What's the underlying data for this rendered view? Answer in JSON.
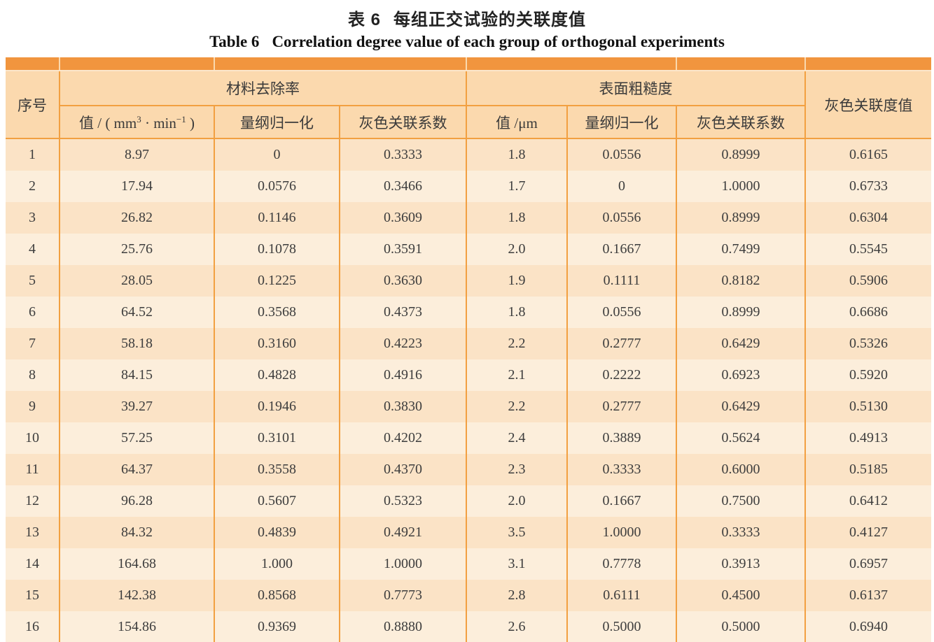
{
  "title": {
    "zh_label": "表 6",
    "zh_text": "每组正交试验的关联度值",
    "en_label": "Table 6",
    "en_text": "Correlation degree value of each group of orthogonal experiments"
  },
  "colors": {
    "band_orange": "#f1953e",
    "grid_orange": "#f2a041",
    "header_bg": "#fbd9ae",
    "row_odd_bg": "#fbe3c6",
    "row_even_bg": "#fceedb",
    "text": "#3a3a3a"
  },
  "table": {
    "index_header": "序号",
    "group1_header": "材料去除率",
    "group2_header": "表面粗糙度",
    "overall_header": "灰色关联度值",
    "sub_headers": {
      "mrr_value": {
        "pre": "值 / ( mm",
        "sup1": "3",
        "mid": " · min",
        "sup2": "−1",
        "post": " )"
      },
      "mrr_norm": "量纲归一化",
      "mrr_grey": "灰色关联系数",
      "ra_value": "值 /μm",
      "ra_norm": "量纲归一化",
      "ra_grey": "灰色关联系数"
    },
    "rows": [
      [
        "1",
        "8.97",
        "0",
        "0.3333",
        "1.8",
        "0.0556",
        "0.8999",
        "0.6165"
      ],
      [
        "2",
        "17.94",
        "0.0576",
        "0.3466",
        "1.7",
        "0",
        "1.0000",
        "0.6733"
      ],
      [
        "3",
        "26.82",
        "0.1146",
        "0.3609",
        "1.8",
        "0.0556",
        "0.8999",
        "0.6304"
      ],
      [
        "4",
        "25.76",
        "0.1078",
        "0.3591",
        "2.0",
        "0.1667",
        "0.7499",
        "0.5545"
      ],
      [
        "5",
        "28.05",
        "0.1225",
        "0.3630",
        "1.9",
        "0.1111",
        "0.8182",
        "0.5906"
      ],
      [
        "6",
        "64.52",
        "0.3568",
        "0.4373",
        "1.8",
        "0.0556",
        "0.8999",
        "0.6686"
      ],
      [
        "7",
        "58.18",
        "0.3160",
        "0.4223",
        "2.2",
        "0.2777",
        "0.6429",
        "0.5326"
      ],
      [
        "8",
        "84.15",
        "0.4828",
        "0.4916",
        "2.1",
        "0.2222",
        "0.6923",
        "0.5920"
      ],
      [
        "9",
        "39.27",
        "0.1946",
        "0.3830",
        "2.2",
        "0.2777",
        "0.6429",
        "0.5130"
      ],
      [
        "10",
        "57.25",
        "0.3101",
        "0.4202",
        "2.4",
        "0.3889",
        "0.5624",
        "0.4913"
      ],
      [
        "11",
        "64.37",
        "0.3558",
        "0.4370",
        "2.3",
        "0.3333",
        "0.6000",
        "0.5185"
      ],
      [
        "12",
        "96.28",
        "0.5607",
        "0.5323",
        "2.0",
        "0.1667",
        "0.7500",
        "0.6412"
      ],
      [
        "13",
        "84.32",
        "0.4839",
        "0.4921",
        "3.5",
        "1.0000",
        "0.3333",
        "0.4127"
      ],
      [
        "14",
        "164.68",
        "1.000",
        "1.0000",
        "3.1",
        "0.7778",
        "0.3913",
        "0.6957"
      ],
      [
        "15",
        "142.38",
        "0.8568",
        "0.7773",
        "2.8",
        "0.6111",
        "0.4500",
        "0.6137"
      ],
      [
        "16",
        "154.86",
        "0.9369",
        "0.8880",
        "2.6",
        "0.5000",
        "0.5000",
        "0.6940"
      ]
    ]
  }
}
